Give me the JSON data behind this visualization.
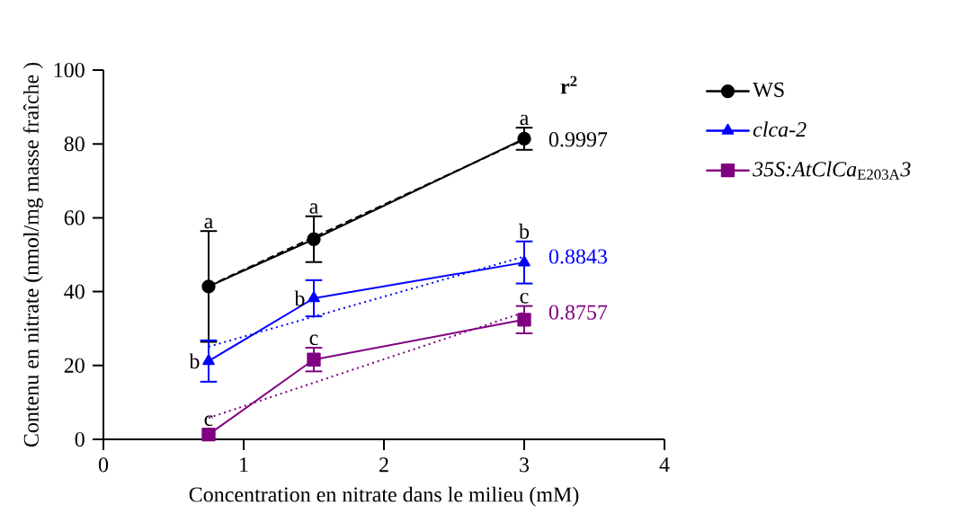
{
  "chart_data": {
    "type": "line",
    "xlabel": "Concentration en nitrate dans le milieu (mM)",
    "ylabel": "Contenu en nitrate (nmol/mg masse fraîche )",
    "xlim": [
      0,
      4
    ],
    "xticks": [
      0,
      1,
      2,
      3,
      4
    ],
    "ylim": [
      0,
      100
    ],
    "yticks": [
      0,
      20,
      40,
      60,
      80,
      100
    ],
    "legend": "right",
    "grid": false,
    "series": [
      {
        "name": "WS",
        "color": "#000000",
        "x": [
          0.75,
          1.5,
          3
        ],
        "values": [
          41.4,
          54.2,
          81.4
        ],
        "errors": [
          15,
          6.2,
          3
        ],
        "marker": "circle",
        "line_style": "solid"
      },
      {
        "name": "*clca-2*",
        "color": "#0000ff",
        "x": [
          0.75,
          1.5,
          3
        ],
        "values": [
          21.2,
          38.2,
          47.9
        ],
        "errors": [
          5.6,
          4.9,
          5.7
        ],
        "marker": "triangle",
        "line_style": "solid"
      },
      {
        "name": "*35S:AtClCa*$_{E203A}$*3*",
        "color": "#800080",
        "x": [
          0.75,
          1.5,
          3
        ],
        "values": [
          1.3,
          21.6,
          32.4
        ],
        "errors": [
          null,
          3.2,
          3.7
        ],
        "marker": "square",
        "line_style": "solid"
      },
      {
        "type": "line",
        "color": "#000000",
        "x": [
          0.75,
          3
        ],
        "values": [
          41.5,
          81.2
        ],
        "marker": "none",
        "line_style": "dashed",
        "name": "0.9997"
      },
      {
        "type": "line",
        "color": "#0000ff",
        "x": [
          0.75,
          3
        ],
        "values": [
          25.1,
          49.5
        ],
        "marker": "none",
        "line_style": "dotted",
        "name": "0.8843"
      },
      {
        "type": "line",
        "color": "#800080",
        "x": [
          0.75,
          3
        ],
        "values": [
          5.8,
          34.4
        ],
        "marker": "none",
        "line_style": "dotted",
        "name": "0.8757"
      }
    ],
    "annotations": [
      "r$^{2}$",
      {
        "text": "a",
        "x": 0.75,
        "y": 56.4
      },
      {
        "text": "a",
        "x": 1.5,
        "y": 60.4
      },
      {
        "text": "a",
        "x": 3,
        "y": 84.4
      },
      {
        "text": "b",
        "x": 0.75,
        "y": 21.2
      },
      {
        "text": "b",
        "x": 1.5,
        "y": 38.2
      },
      {
        "text": "b",
        "x": 3,
        "y": 53.6
      },
      {
        "text": "c",
        "x": 0.75,
        "y": 1.3
      },
      {
        "text": "c",
        "x": 1.5,
        "y": 24.8
      },
      {
        "text": "c",
        "x": 3,
        "y": 36.1
      }
    ]
  }
}
